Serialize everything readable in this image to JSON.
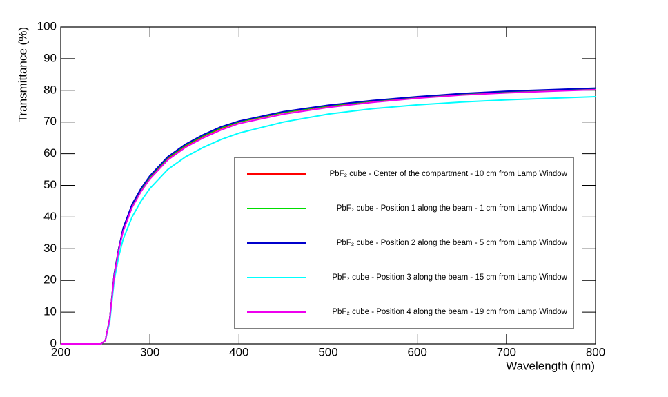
{
  "chart_data": {
    "type": "line",
    "x_label": "Wavelength (nm)",
    "y_label": "Transmittance (%)",
    "xlim": [
      200,
      800
    ],
    "ylim": [
      0,
      100
    ],
    "xticks": [
      200,
      300,
      400,
      500,
      600,
      700,
      800
    ],
    "yticks": [
      0,
      10,
      20,
      30,
      40,
      50,
      60,
      70,
      80,
      90,
      100
    ],
    "x": [
      200,
      220,
      240,
      245,
      250,
      255,
      260,
      265,
      270,
      280,
      290,
      300,
      320,
      340,
      360,
      380,
      400,
      450,
      500,
      550,
      600,
      650,
      700,
      750,
      800
    ],
    "series": [
      {
        "name": "PbF₂ cube - Center of the compartment - 10 cm from Lamp Window",
        "color": "#ff0000",
        "values": [
          0,
          0,
          0,
          0,
          1,
          8,
          22,
          30,
          36,
          43.5,
          48.5,
          52.5,
          58.5,
          62.5,
          65.5,
          68,
          70,
          73,
          75,
          76.6,
          77.8,
          78.8,
          79.5,
          80,
          80.5
        ]
      },
      {
        "name": "PbF₂ cube - Position 1 along the beam - 1 cm from Lamp Window",
        "color": "#00dd00",
        "values": [
          0,
          0,
          0,
          0,
          1,
          8,
          22,
          30,
          36,
          43.7,
          48.7,
          52.7,
          58.7,
          62.7,
          65.7,
          68.2,
          70.1,
          73.1,
          75.1,
          76.7,
          77.9,
          78.9,
          79.6,
          80.1,
          80.6
        ]
      },
      {
        "name": "PbF₂ cube - Position 2 along the beam - 5 cm from Lamp Window",
        "color": "#0000cc",
        "values": [
          0,
          0,
          0,
          0,
          1,
          8,
          22,
          30,
          36.5,
          44,
          49,
          53,
          59,
          63,
          66,
          68.5,
          70.3,
          73.3,
          75.3,
          76.8,
          78,
          79,
          79.7,
          80.2,
          80.7
        ]
      },
      {
        "name": "PbF₂ cube - Position 3 along the beam - 15 cm from Lamp Window",
        "color": "#00ffff",
        "values": [
          0,
          0,
          0,
          0,
          1,
          7,
          20,
          27.5,
          33,
          40,
          45,
          49,
          55,
          59,
          62,
          64.5,
          66.5,
          70,
          72.5,
          74.2,
          75.4,
          76.3,
          77,
          77.5,
          78
        ]
      },
      {
        "name": "PbF₂ cube - Position 4 along the beam - 19 cm from Lamp Window",
        "color": "#ee00ee",
        "values": [
          0,
          0,
          0,
          0,
          1,
          8,
          21.5,
          29.5,
          35.5,
          43,
          48,
          52,
          58,
          62,
          65,
          67.5,
          69.5,
          72.5,
          74.6,
          76.2,
          77.5,
          78.5,
          79.2,
          79.7,
          80.2
        ]
      }
    ]
  }
}
